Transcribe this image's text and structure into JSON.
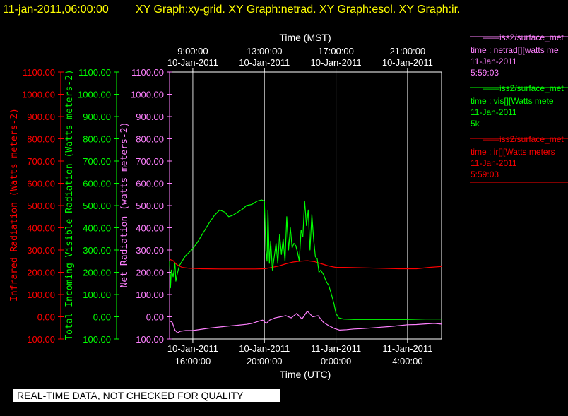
{
  "header": {
    "timestamp": "11-jan-2011,06:00:00",
    "graphs": "XY Graph:xy-grid.  XY Graph:netrad.  XY Graph:esol.  XY Graph:ir."
  },
  "footer_notice": "REAL-TIME DATA, NOT CHECKED FOR QUALITY",
  "colors": {
    "ir": "#ff0000",
    "vis": "#00ff00",
    "net": "#ff80ff",
    "axis": "#ffffff",
    "title": "#ffff00"
  },
  "legend": [
    {
      "line1": "iss2/surface_met",
      "line2": "time : netrad[][watts me",
      "line3": "11-Jan-2011",
      "line4": "5:59:03",
      "color": "#ff80ff"
    },
    {
      "line1": "iss2/surface_met",
      "line2": "time : vis[][Watts mete",
      "line3": "11-Jan-2011",
      "line4": "5k",
      "color": "#00ff00"
    },
    {
      "line1": "iss2/surface_met",
      "line2": "time : ir[][Watts meters",
      "line3": "11-Jan-2011",
      "line4": "5:59:03",
      "color": "#ff0000"
    }
  ],
  "chart_data": {
    "type": "line",
    "x_unit": "hours UTC from 10-Jan-2011 00:00",
    "xlim": [
      14.7,
      29.9
    ],
    "ylim": [
      -100,
      1100
    ],
    "top_axis_title": "Time (MST)",
    "top_ticks": [
      {
        "x": 16,
        "time": "9:00:00",
        "date": "10-Jan-2011"
      },
      {
        "x": 20,
        "time": "13:00:00",
        "date": "10-Jan-2011"
      },
      {
        "x": 24,
        "time": "17:00:00",
        "date": "10-Jan-2011"
      },
      {
        "x": 28,
        "time": "21:00:00",
        "date": "10-Jan-2011"
      }
    ],
    "bottom_axis_title": "Time (UTC)",
    "bottom_ticks": [
      {
        "x": 16,
        "date": "10-Jan-2011",
        "time": "16:00:00"
      },
      {
        "x": 20,
        "date": "10-Jan-2011",
        "time": "20:00:00"
      },
      {
        "x": 24,
        "date": "11-Jan-2011",
        "time": "0:00:00"
      },
      {
        "x": 28,
        "date": "11-Jan-2011",
        "time": "4:00:00"
      }
    ],
    "y_tick_labels": [
      "1100.00",
      "1000.00",
      "900.00",
      "800.00",
      "700.00",
      "600.00",
      "500.00",
      "400.00",
      "300.00",
      "200.00",
      "100.00",
      "0.00",
      "-100.00"
    ],
    "y_ticks": [
      1100,
      1000,
      900,
      800,
      700,
      600,
      500,
      400,
      300,
      200,
      100,
      0,
      -100
    ],
    "axes": [
      {
        "label": "Infrared Radiation (Watts meters-2)",
        "color": "#ff0000"
      },
      {
        "label": "Total Incoming Visible Radiation (Watts meters-2)",
        "color": "#00ff00"
      },
      {
        "label": "Net Radiation (watts meters-2)",
        "color": "#ff80ff"
      }
    ],
    "series": [
      {
        "key": "ir",
        "color": "#ff0000",
        "x": [
          14.7,
          14.9,
          15.1,
          15.4,
          15.8,
          16.5,
          17.5,
          18.5,
          19.5,
          20.0,
          20.3,
          20.8,
          21.2,
          21.6,
          22.0,
          22.4,
          22.8,
          23.2,
          23.6,
          24.0,
          24.5,
          25.5,
          26.5,
          27.5,
          28.5,
          29.2,
          29.9
        ],
        "y": [
          258,
          252,
          235,
          222,
          218,
          216,
          215,
          215,
          215,
          216,
          220,
          228,
          238,
          246,
          250,
          252,
          248,
          238,
          228,
          222,
          222,
          220,
          218,
          216,
          216,
          222,
          226
        ]
      },
      {
        "key": "vis",
        "color": "#00ff00",
        "x": [
          14.7,
          14.75,
          14.8,
          14.9,
          15.0,
          15.05,
          15.15,
          15.25,
          15.4,
          15.6,
          15.8,
          16.0,
          16.3,
          16.6,
          16.9,
          17.2,
          17.5,
          17.8,
          18.0,
          18.2,
          18.5,
          18.8,
          19.0,
          19.3,
          19.6,
          19.85,
          20.0,
          20.08,
          20.15,
          20.2,
          20.28,
          20.35,
          20.45,
          20.55,
          20.65,
          20.75,
          20.85,
          20.95,
          21.05,
          21.15,
          21.25,
          21.35,
          21.45,
          21.55,
          21.65,
          21.75,
          21.85,
          21.95,
          22.05,
          22.15,
          22.25,
          22.35,
          22.45,
          22.55,
          22.65,
          22.75,
          22.85,
          22.95,
          23.05,
          23.15,
          23.3,
          23.45,
          23.6,
          23.75,
          23.9,
          24.0,
          24.15,
          24.4,
          25.0,
          26.0,
          27.0,
          28.0,
          29.0,
          29.9
        ],
        "y": [
          250,
          130,
          210,
          180,
          240,
          160,
          200,
          230,
          250,
          275,
          290,
          305,
          340,
          380,
          420,
          455,
          480,
          470,
          450,
          455,
          470,
          485,
          500,
          505,
          520,
          525,
          520,
          300,
          250,
          480,
          240,
          340,
          210,
          270,
          330,
          240,
          370,
          280,
          350,
          250,
          450,
          300,
          400,
          310,
          330,
          320,
          290,
          250,
          390,
          360,
          520,
          410,
          480,
          300,
          460,
          350,
          270,
          260,
          200,
          210,
          190,
          160,
          140,
          100,
          55,
          15,
          -5,
          -10,
          -12,
          -12,
          -12,
          -12,
          -10,
          -10
        ]
      },
      {
        "key": "net",
        "color": "#ff80ff",
        "x": [
          14.7,
          14.85,
          15.0,
          15.15,
          15.3,
          15.6,
          16.0,
          16.5,
          17.0,
          17.5,
          18.0,
          18.5,
          19.0,
          19.3,
          19.6,
          19.9,
          20.1,
          20.3,
          20.6,
          20.9,
          21.2,
          21.5,
          21.8,
          22.1,
          22.4,
          22.7,
          23.0,
          23.3,
          23.6,
          23.9,
          24.2,
          24.6,
          25.0,
          25.5,
          26.0,
          26.5,
          27.0,
          27.5,
          28.0,
          28.5,
          29.0,
          29.5,
          29.9
        ],
        "y": [
          -18,
          -25,
          -60,
          -72,
          -65,
          -62,
          -62,
          -56,
          -50,
          -46,
          -42,
          -38,
          -34,
          -30,
          -22,
          -15,
          -30,
          -15,
          -5,
          0,
          5,
          -5,
          15,
          -10,
          25,
          0,
          5,
          -25,
          -40,
          -52,
          -60,
          -58,
          -55,
          -53,
          -50,
          -47,
          -44,
          -40,
          -36,
          -35,
          -32,
          -30,
          -33
        ]
      }
    ]
  }
}
